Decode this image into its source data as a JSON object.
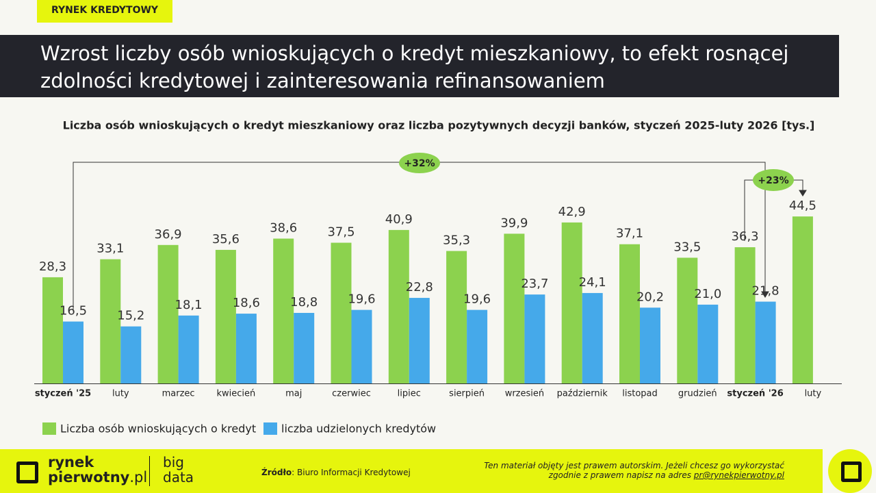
{
  "header": {
    "tag": "RYNEK KREDYTOWY",
    "title": "Wzrost liczby osób wnioskujących o kredyt mieszkaniowy, to efekt rosnącej zdolności kredytowej i zainteresowania refinansowaniem"
  },
  "chart_data": {
    "type": "grouped_bar",
    "title": "Liczba osób wnioskujących o kredyt mieszkaniowy oraz liczba pozytywnych decyzji banków, styczeń 2025-luty 2026 [tys.]",
    "categories": [
      "styczeń '25",
      "luty",
      "marzec",
      "kwiecień",
      "maj",
      "czerwiec",
      "lipiec",
      "sierpień",
      "wrzesień",
      "październik",
      "listopad",
      "grudzień",
      "styczeń '26",
      "luty"
    ],
    "series": [
      {
        "name": "Liczba osób wnioskujących o kredyt",
        "color": "#8cd24e",
        "values": [
          28.3,
          33.1,
          36.9,
          35.6,
          38.6,
          37.5,
          40.9,
          35.3,
          39.9,
          42.9,
          37.1,
          33.5,
          36.3,
          44.5
        ],
        "value_labels": [
          "28,3",
          "33,1",
          "36,9",
          "35,6",
          "38,6",
          "37,5",
          "40,9",
          "35,3",
          "39,9",
          "42,9",
          "37,1",
          "33,5",
          "36,3",
          "44,5"
        ]
      },
      {
        "name": "liczba udzielonych kredytów",
        "color": "#45a9ea",
        "values": [
          16.5,
          15.2,
          18.1,
          18.6,
          18.8,
          19.6,
          22.8,
          19.6,
          23.7,
          24.1,
          20.2,
          21.0,
          21.8,
          null
        ],
        "value_labels": [
          "16,5",
          "15,2",
          "18,1",
          "18,6",
          "18,8",
          "19,6",
          "22,8",
          "19,6",
          "23,7",
          "24,1",
          "20,2",
          "21,0",
          "21,8",
          null
        ]
      }
    ],
    "annotations": [
      "+32%",
      "+23%"
    ]
  },
  "footer": {
    "brand_top": "rynek",
    "brand_bottom": "pierwotny",
    "brand_suffix": ".pl",
    "big": "big",
    "data": "data",
    "source_label": "Źródło",
    "source": ": Biuro Informacji Kredytowej",
    "note_lines": [
      "Ten materiał objęty jest prawem autorskim. Jeżeli chcesz go wykorzystać",
      "zgodnie z prawem napisz na adres"
    ],
    "email": "pr@rynekpierwotny.pl"
  }
}
